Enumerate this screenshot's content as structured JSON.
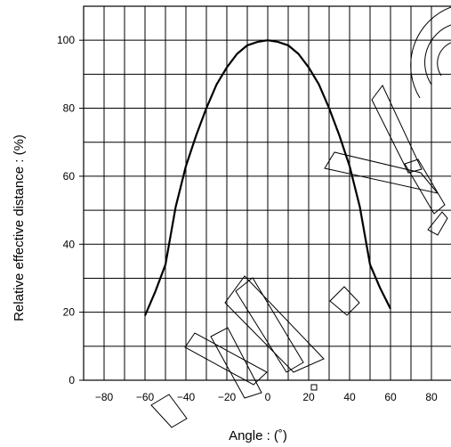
{
  "chart_data": {
    "type": "line",
    "title": "",
    "xlabel": "Angle : (˚)",
    "ylabel": "Relative effective distance : (%)",
    "xlim": [
      -90,
      90
    ],
    "ylim": [
      0,
      110
    ],
    "x_ticks": [
      -80,
      -60,
      -40,
      -20,
      0,
      20,
      40,
      60,
      80
    ],
    "y_ticks": [
      0,
      20,
      40,
      60,
      80,
      100
    ],
    "grid": true,
    "series": [
      {
        "color": "#000000",
        "x": [
          -60,
          -55,
          -50,
          -45,
          -40,
          -35,
          -30,
          -25,
          -20,
          -15,
          -10,
          -5,
          0,
          5,
          10,
          15,
          20,
          25,
          30,
          35,
          40,
          45,
          50,
          55,
          60
        ],
        "y": [
          19,
          26,
          34,
          51,
          63,
          72,
          80,
          87,
          92,
          96,
          98.5,
          99.5,
          100,
          99.5,
          98.5,
          96,
          92,
          87,
          80,
          72,
          63,
          51,
          34,
          27,
          21
        ]
      }
    ]
  }
}
